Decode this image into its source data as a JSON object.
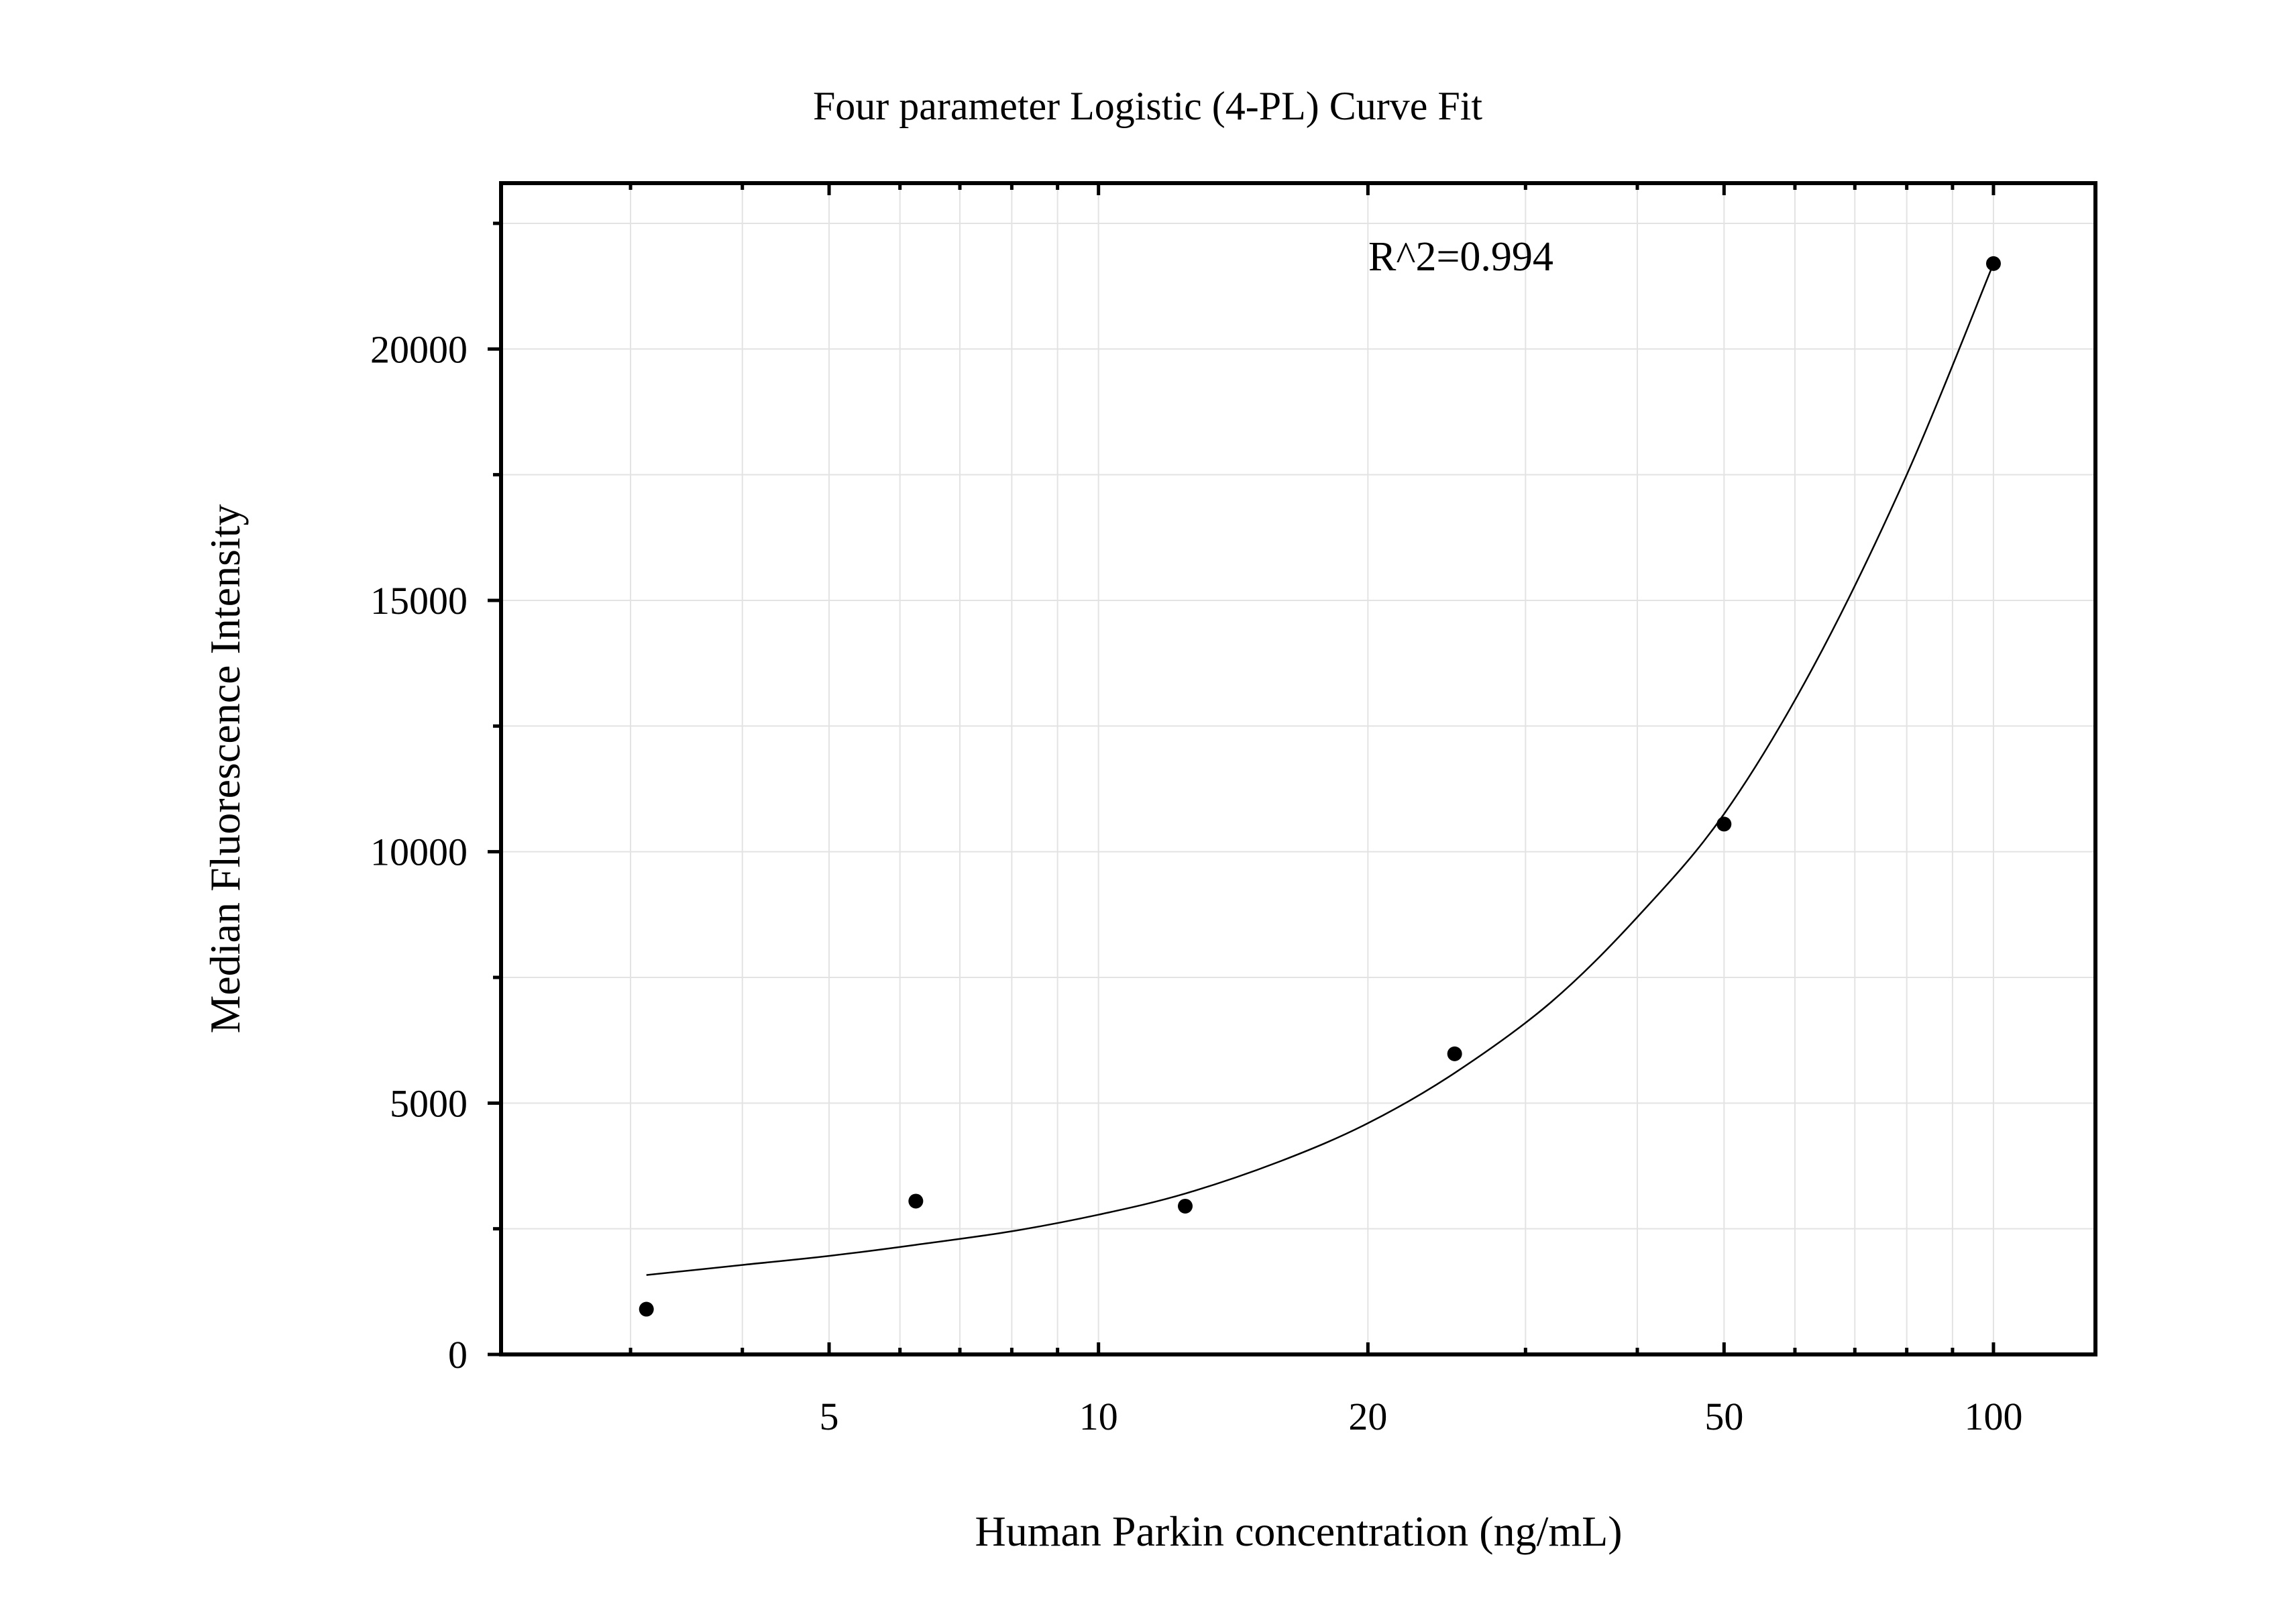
{
  "chart_data": {
    "type": "scatter",
    "title": "Four parameter Logistic (4-PL) Curve Fit",
    "xlabel": "Human Parkin concentration (ng/mL)",
    "ylabel": "Median Fluorescence Intensity",
    "x_scale": "log",
    "xlim": [
      2.15,
      130
    ],
    "ylim": [
      0,
      23300
    ],
    "x_major_ticks": [
      5,
      10,
      20,
      50,
      100
    ],
    "x_minor_ticks": [
      3,
      4,
      6,
      7,
      8,
      9,
      30,
      40,
      60,
      70,
      80,
      90
    ],
    "y_major_ticks": [
      0,
      5000,
      10000,
      15000,
      20000
    ],
    "y_minor_ticks": [
      2500,
      7500,
      12500,
      17500,
      22500
    ],
    "grid": true,
    "annotation": "R^2=0.994",
    "points": {
      "x": [
        3.125,
        6.25,
        12.5,
        25,
        50,
        100
      ],
      "y": [
        900,
        3050,
        2950,
        5980,
        10550,
        21700
      ]
    },
    "fit_curve": {
      "x": [
        3.125,
        4,
        5,
        6.25,
        8,
        10,
        12.5,
        16,
        20,
        25,
        32,
        40,
        50,
        63,
        80,
        100
      ],
      "y": [
        1580,
        1780,
        1960,
        2180,
        2450,
        2780,
        3200,
        3850,
        4600,
        5600,
        7000,
        8700,
        10750,
        13700,
        17500,
        21700
      ]
    }
  }
}
